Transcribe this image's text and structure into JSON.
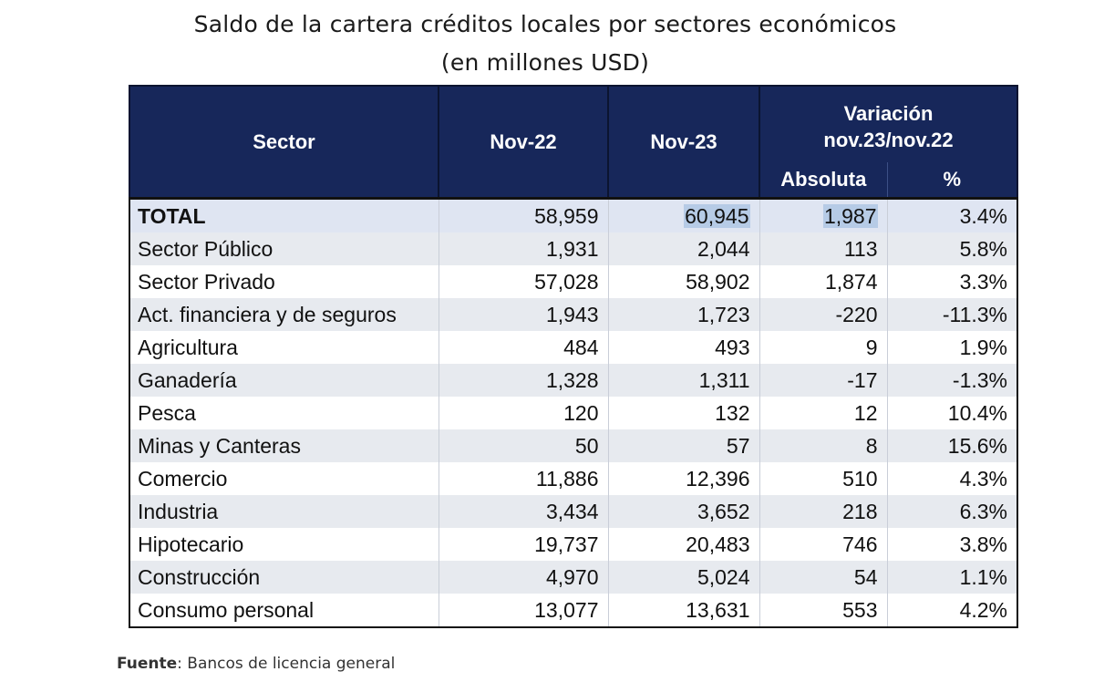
{
  "title": {
    "line1": "Saldo de la cartera créditos locales por sectores económicos",
    "line2": "(en millones USD)"
  },
  "header": {
    "sector": "Sector",
    "nov22": "Nov-22",
    "nov23": "Nov-23",
    "variacion_line1": "Variación",
    "variacion_line2": "nov.23/nov.22",
    "absoluta": "Absoluta",
    "pct": "%"
  },
  "rows": [
    {
      "sector": "TOTAL",
      "nov22": "58,959",
      "nov23": "60,945",
      "abs": "1,987",
      "pct": "3.4%"
    },
    {
      "sector": "Sector Público",
      "nov22": "1,931",
      "nov23": "2,044",
      "abs": "113",
      "pct": "5.8%"
    },
    {
      "sector": "Sector Privado",
      "nov22": "57,028",
      "nov23": "58,902",
      "abs": "1,874",
      "pct": "3.3%"
    },
    {
      "sector": "Act. financiera y de seguros",
      "nov22": "1,943",
      "nov23": "1,723",
      "abs": "-220",
      "pct": "-11.3%"
    },
    {
      "sector": "Agricultura",
      "nov22": "484",
      "nov23": "493",
      "abs": "9",
      "pct": "1.9%"
    },
    {
      "sector": "Ganadería",
      "nov22": "1,328",
      "nov23": "1,311",
      "abs": "-17",
      "pct": "-1.3%"
    },
    {
      "sector": "Pesca",
      "nov22": "120",
      "nov23": "132",
      "abs": "12",
      "pct": "10.4%"
    },
    {
      "sector": "Minas y Canteras",
      "nov22": "50",
      "nov23": "57",
      "abs": "8",
      "pct": "15.6%"
    },
    {
      "sector": "Comercio",
      "nov22": "11,886",
      "nov23": "12,396",
      "abs": "510",
      "pct": "4.3%"
    },
    {
      "sector": "Industria",
      "nov22": "3,434",
      "nov23": "3,652",
      "abs": "218",
      "pct": "6.3%"
    },
    {
      "sector": "Hipotecario",
      "nov22": "19,737",
      "nov23": "20,483",
      "abs": "746",
      "pct": "3.8%"
    },
    {
      "sector": "Construcción",
      "nov22": "4,970",
      "nov23": "5,024",
      "abs": "54",
      "pct": "1.1%"
    },
    {
      "sector": "Consumo personal",
      "nov22": "13,077",
      "nov23": "13,631",
      "abs": "553",
      "pct": "4.2%"
    }
  ],
  "source": {
    "label": "Fuente",
    "text": ": Bancos de licencia general"
  },
  "colors": {
    "header_bg": "#17275a",
    "total_row_bg": "#dfe5f2",
    "highlight": "#b6cbe6",
    "stripe": "#e7eaef"
  }
}
